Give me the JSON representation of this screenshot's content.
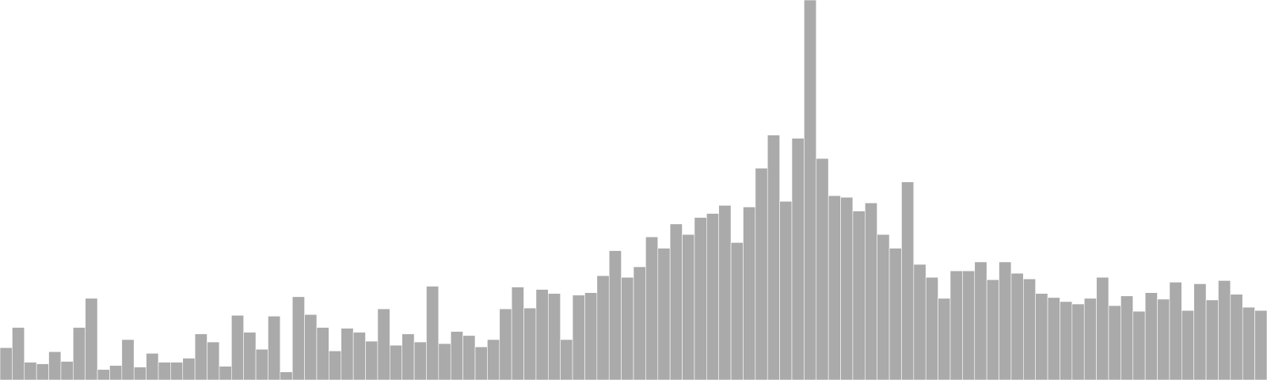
{
  "chart_data": {
    "type": "bar",
    "color": "#aaaaaa",
    "ylim": [
      0,
      470
    ],
    "values": [
      40,
      65,
      22,
      20,
      35,
      23,
      65,
      101,
      13,
      18,
      50,
      16,
      33,
      22,
      22,
      27,
      57,
      47,
      17,
      80,
      59,
      38,
      79,
      10,
      103,
      81,
      65,
      36,
      64,
      59,
      48,
      88,
      43,
      57,
      47,
      116,
      45,
      60,
      55,
      41,
      50,
      88,
      115,
      89,
      112,
      107,
      50,
      105,
      108,
      129,
      160,
      127,
      140,
      177,
      163,
      193,
      180,
      201,
      206,
      216,
      170,
      214,
      262,
      303,
      221,
      299,
      470,
      274,
      228,
      226,
      209,
      219,
      180,
      163,
      245,
      143,
      127,
      101,
      135,
      135,
      146,
      124,
      146,
      132,
      125,
      107,
      102,
      97,
      94,
      101,
      127,
      92,
      104,
      85,
      108,
      100,
      121,
      86,
      119,
      99,
      123,
      106,
      90,
      86
    ]
  }
}
